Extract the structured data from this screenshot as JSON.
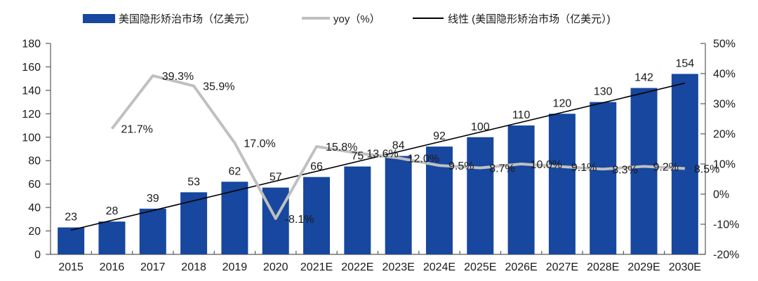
{
  "legend": {
    "items": [
      {
        "label": "美国隐形矫治市场（亿美元）",
        "marker": "bar-swatch",
        "color": "#17479e"
      },
      {
        "label": "yoy（%）",
        "marker": "thick-line-swatch",
        "color": "#c0c0c0"
      },
      {
        "label": "线性 (美国隐形矫治市场（亿美元）)",
        "marker": "thin-line-swatch",
        "color": "#000000"
      }
    ]
  },
  "chart_data": {
    "type": "bar",
    "title": "",
    "xlabel": "",
    "ylabel_left": "亿美元",
    "ylabel_right": "%",
    "legend_position": "top",
    "grid": false,
    "categories": [
      "2015",
      "2016",
      "2017",
      "2018",
      "2019",
      "2020",
      "2021E",
      "2022E",
      "2023E",
      "2024E",
      "2025E",
      "2026E",
      "2027E",
      "2028E",
      "2029E",
      "2030E"
    ],
    "series": [
      {
        "name": "美国隐形矫治市场（亿美元）",
        "type": "bar",
        "axis": "left",
        "color": "#17479e",
        "values": [
          23,
          28,
          39,
          53,
          62,
          57,
          66,
          75,
          84,
          92,
          100,
          110,
          120,
          130,
          142,
          154
        ],
        "value_labels": [
          "23",
          "28",
          "39",
          "53",
          "62",
          "57",
          "66",
          "75",
          "84",
          "92",
          "100",
          "110",
          "120",
          "130",
          "142",
          "154"
        ]
      },
      {
        "name": "yoy（%）",
        "type": "line",
        "axis": "right",
        "color": "#c0c0c0",
        "values": [
          null,
          21.7,
          39.3,
          35.9,
          17.0,
          -8.1,
          15.8,
          13.6,
          12.0,
          9.5,
          8.7,
          10.0,
          9.1,
          8.3,
          9.2,
          8.5
        ],
        "value_labels": [
          null,
          "21.7%",
          "39.3%",
          "35.9%",
          "17.0%",
          "-8.1%",
          "15.8%",
          "13.6%",
          "12.0%",
          "9.5%",
          "8.7%",
          "10.0%",
          "9.1%",
          "8.3%",
          "9.2%",
          "8.5%"
        ]
      },
      {
        "name": "线性 (美国隐形矫治市场（亿美元）)",
        "type": "linear-trendline-of-bar-series",
        "axis": "left",
        "color": "#000000"
      }
    ],
    "left_axis": {
      "min": 0,
      "max": 180,
      "step": 20,
      "tick_labels": [
        "0",
        "20",
        "40",
        "60",
        "80",
        "100",
        "120",
        "140",
        "160",
        "180"
      ]
    },
    "right_axis": {
      "min": -20,
      "max": 50,
      "step": 10,
      "tick_labels": [
        "-20%",
        "-10%",
        "0%",
        "10%",
        "20%",
        "30%",
        "40%",
        "50%"
      ]
    }
  },
  "colors": {
    "bar": "#17479e",
    "yoy_line": "#c0c0c0",
    "trend_line": "#000000",
    "axis": "#595959",
    "text": "#1a1a1a",
    "background": "#ffffff"
  }
}
